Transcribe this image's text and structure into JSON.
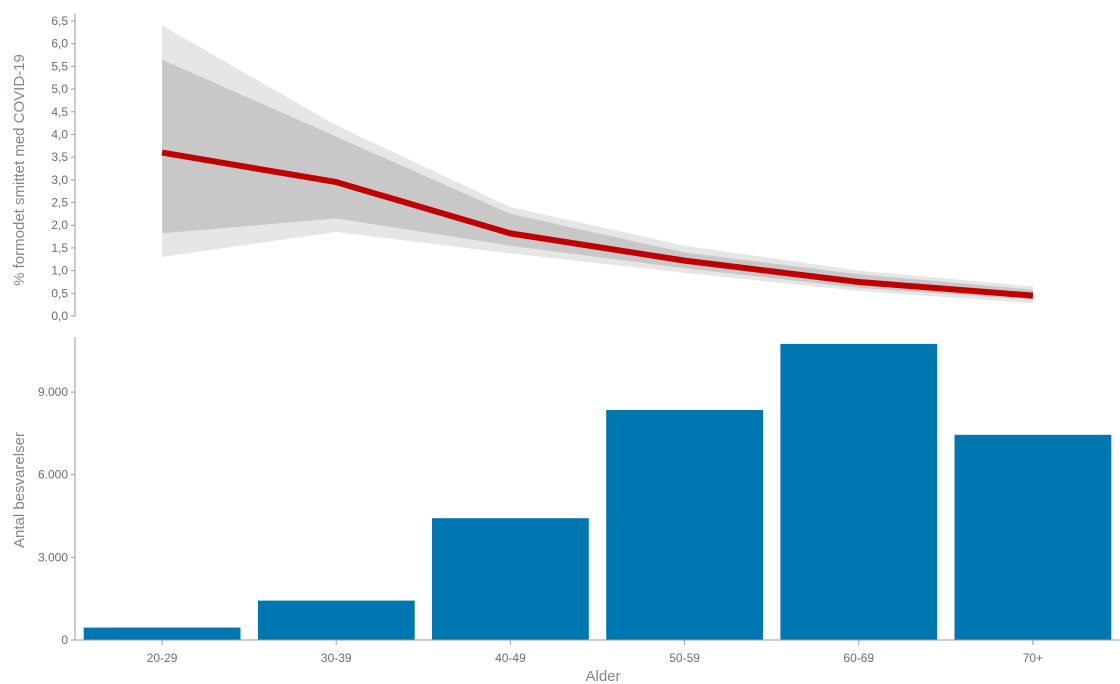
{
  "chart_data": [
    {
      "type": "line",
      "ylabel": "% formodet smittet med COVID-19",
      "xlabel": "",
      "categories": [
        "20-29",
        "30-39",
        "40-49",
        "50-59",
        "60-69",
        "70+"
      ],
      "ylim": [
        0,
        6.5
      ],
      "yticks": [
        0,
        0.5,
        1,
        1.5,
        2,
        2.5,
        3,
        3.5,
        4,
        4.5,
        5,
        5.5,
        6,
        6.5
      ],
      "ytick_labels": [
        "0,0",
        "0,5",
        "1,0",
        "1,5",
        "2,0",
        "2,5",
        "3,0",
        "3,5",
        "4,0",
        "4,5",
        "5,0",
        "5,5",
        "6,0",
        "6,5"
      ],
      "values": [
        3.6,
        2.95,
        1.82,
        1.22,
        0.75,
        0.45
      ],
      "inner_band_upper": [
        5.65,
        3.95,
        2.25,
        1.4,
        0.92,
        0.58
      ],
      "inner_band_lower": [
        1.82,
        2.15,
        1.55,
        1.05,
        0.62,
        0.36
      ],
      "outer_band_upper": [
        6.4,
        4.2,
        2.4,
        1.55,
        1.0,
        0.65
      ],
      "outer_band_lower": [
        1.3,
        1.85,
        1.38,
        0.95,
        0.55,
        0.28
      ],
      "grid": false,
      "colors": {
        "line": "#c00000",
        "inner_band": "#c8c8c8",
        "outer_band": "#e6e6e6"
      }
    },
    {
      "type": "bar",
      "ylabel": "Antal besvarelser",
      "xlabel": "Alder",
      "categories": [
        "20-29",
        "30-39",
        "40-49",
        "50-59",
        "60-69",
        "70+"
      ],
      "values": [
        450,
        1430,
        4420,
        8350,
        10750,
        7450
      ],
      "ylim": [
        0,
        11000
      ],
      "yticks": [
        0,
        3000,
        6000,
        9000
      ],
      "ytick_labels": [
        "0",
        "3.000",
        "6.000",
        "9.000"
      ],
      "grid": false,
      "colors": {
        "bar": "#0077b1"
      }
    }
  ]
}
